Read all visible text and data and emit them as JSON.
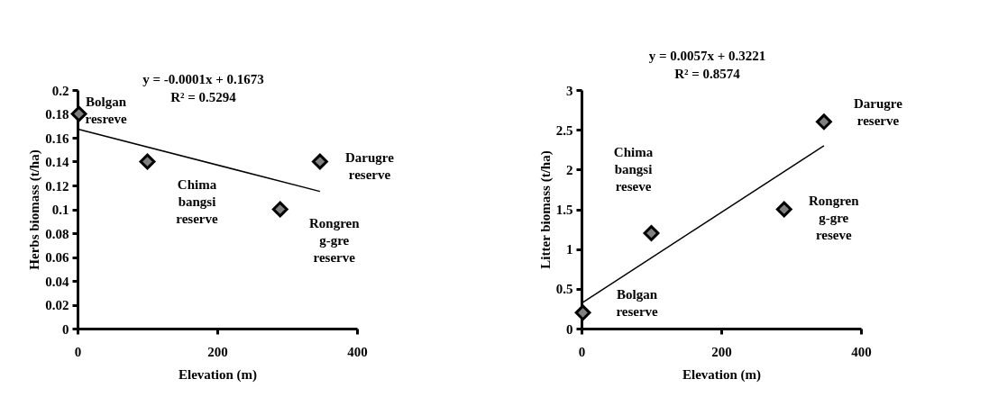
{
  "chart_data": [
    {
      "type": "scatter",
      "xlabel": "Elevation (m)",
      "ylabel": "Herbs biomass (t/ha)",
      "xlim": [
        0,
        400
      ],
      "xticks": [
        0,
        200,
        400
      ],
      "ylim": [
        0,
        0.2
      ],
      "yticks": [
        0,
        0.02,
        0.04,
        0.06,
        0.08,
        0.1,
        0.12,
        0.14,
        0.16,
        0.18,
        0.2
      ],
      "grid": false,
      "marker": "diamond",
      "series": [
        {
          "type": "scatter",
          "color": "#808080",
          "x": [
            2,
            100,
            290,
            347
          ],
          "values": [
            0.18,
            0.14,
            0.1,
            0.14
          ]
        },
        {
          "type": "line",
          "color": "#000000",
          "marker": "none",
          "line_style": "solid",
          "x": [
            2,
            347
          ],
          "values": [
            0.167,
            0.115
          ]
        }
      ],
      "annotations": [
        "y = -0.0001x + 0.1673",
        "R² = 0.5294",
        {
          "text": "Bolgan\nresreve",
          "x": 2,
          "y": 0.18
        },
        {
          "text": "Chima\nbangsi\nreserve",
          "x": 100,
          "y": 0.14
        },
        {
          "text": "Rongren\ng-gre\nreserve",
          "x": 290,
          "y": 0.1
        },
        {
          "text": "Darugre\nreserve",
          "x": 347,
          "y": 0.14
        }
      ]
    },
    {
      "type": "scatter",
      "xlabel": "Elevation (m)",
      "ylabel": "Litter biomass (t/ha)",
      "xlim": [
        0,
        400
      ],
      "xticks": [
        0,
        200,
        400
      ],
      "ylim": [
        0,
        3
      ],
      "yticks": [
        0,
        0.5,
        1,
        1.5,
        2,
        2.5,
        3
      ],
      "grid": false,
      "marker": "diamond",
      "series": [
        {
          "type": "scatter",
          "color": "#808080",
          "x": [
            2,
            100,
            290,
            347
          ],
          "values": [
            0.2,
            1.2,
            1.5,
            2.6
          ]
        },
        {
          "type": "line",
          "color": "#000000",
          "marker": "none",
          "line_style": "solid",
          "x": [
            2,
            347
          ],
          "values": [
            0.33,
            2.3
          ]
        }
      ],
      "annotations": [
        "y = 0.0057x + 0.3221",
        "R² = 0.8574",
        {
          "text": "Bolgan\nreserve",
          "x": 2,
          "y": 0.2
        },
        {
          "text": "Chima\nbangsi\nreseve",
          "x": 100,
          "y": 1.2
        },
        {
          "text": "Rongren\ng-gre\nreseve",
          "x": 290,
          "y": 1.5
        },
        {
          "text": "Darugre\nreserve",
          "x": 347,
          "y": 2.6
        }
      ]
    }
  ]
}
